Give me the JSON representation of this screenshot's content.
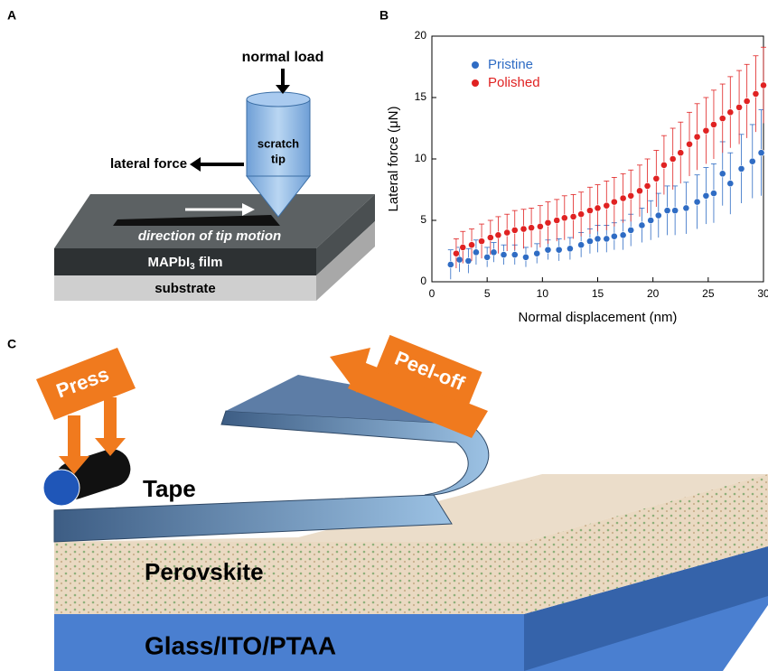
{
  "panel_labels": [
    "A",
    "B",
    "C"
  ],
  "panel_a": {
    "normal_load": "normal load",
    "tip_lines": [
      "scratch",
      "tip"
    ],
    "lateral_force": "lateral force",
    "direction": "direction of tip motion",
    "film": {
      "text": "MAPbI",
      "subscript": "3",
      "suffix": " film"
    },
    "substrate": "substrate"
  },
  "chart_data": {
    "type": "scatter",
    "xlabel": "Normal displacement (nm)",
    "ylabel": "Lateral force (μN)",
    "xlim": [
      0,
      30
    ],
    "xticks": [
      0,
      5,
      10,
      15,
      20,
      25,
      30
    ],
    "ylim": [
      0,
      20
    ],
    "yticks": [
      0,
      5,
      10,
      15,
      20
    ],
    "legend": "upper left",
    "series": [
      {
        "name": "Pristine",
        "color": "#2f6cc4",
        "x": [
          1.7,
          2.5,
          3.3,
          4.0,
          5.0,
          5.6,
          6.5,
          7.5,
          8.5,
          9.5,
          10.5,
          11.5,
          12.5,
          13.5,
          14.3,
          15.0,
          15.8,
          16.5,
          17.3,
          18.0,
          19.0,
          19.8,
          20.5,
          21.3,
          22.0,
          23.0,
          24.0,
          24.8,
          25.5,
          26.3,
          27.0,
          28.0,
          29.0,
          29.8
        ],
        "values": [
          1.4,
          1.8,
          1.7,
          2.4,
          2.0,
          2.4,
          2.2,
          2.2,
          2.0,
          2.3,
          2.6,
          2.6,
          2.7,
          3.0,
          3.3,
          3.5,
          3.5,
          3.7,
          3.8,
          4.2,
          4.6,
          5.0,
          5.4,
          5.8,
          5.8,
          6.0,
          6.5,
          7.0,
          7.2,
          8.8,
          8.0,
          9.2,
          9.8,
          10.5
        ],
        "errors": [
          1.2,
          1.0,
          1.0,
          1.0,
          0.8,
          0.8,
          0.8,
          0.8,
          0.8,
          0.8,
          0.8,
          0.9,
          0.9,
          1.0,
          1.0,
          1.1,
          1.1,
          1.1,
          1.2,
          1.3,
          1.4,
          1.6,
          1.8,
          2.0,
          2.0,
          2.1,
          2.2,
          2.3,
          2.4,
          2.6,
          2.5,
          2.8,
          3.0,
          3.5
        ]
      },
      {
        "name": "Polished",
        "color": "#e02222",
        "x": [
          2.2,
          2.8,
          3.6,
          4.5,
          5.3,
          6.0,
          6.8,
          7.5,
          8.3,
          9.0,
          9.8,
          10.5,
          11.3,
          12.0,
          12.8,
          13.5,
          14.3,
          15.0,
          15.8,
          16.5,
          17.3,
          18.0,
          18.8,
          19.5,
          20.3,
          21.0,
          21.8,
          22.5,
          23.3,
          24.0,
          24.8,
          25.5,
          26.3,
          27.0,
          27.8,
          28.5,
          29.3,
          30.0
        ],
        "values": [
          2.3,
          2.8,
          3.0,
          3.3,
          3.6,
          3.8,
          4.0,
          4.2,
          4.3,
          4.4,
          4.5,
          4.8,
          5.0,
          5.2,
          5.3,
          5.5,
          5.8,
          6.0,
          6.2,
          6.5,
          6.8,
          7.0,
          7.4,
          7.8,
          8.4,
          9.5,
          10.0,
          10.5,
          11.2,
          11.8,
          12.3,
          12.8,
          13.3,
          13.8,
          14.2,
          14.7,
          15.3,
          16.0
        ],
        "errors": [
          1.2,
          1.3,
          1.3,
          1.4,
          1.4,
          1.5,
          1.5,
          1.6,
          1.6,
          1.6,
          1.7,
          1.7,
          1.7,
          1.8,
          1.8,
          1.8,
          1.9,
          1.9,
          2.0,
          2.0,
          2.0,
          2.1,
          2.1,
          2.2,
          2.3,
          2.4,
          2.5,
          2.5,
          2.6,
          2.7,
          2.7,
          2.8,
          2.8,
          2.9,
          3.0,
          3.0,
          3.1,
          3.1
        ]
      }
    ]
  },
  "panel_c": {
    "press": "Press",
    "peel_off": "Peel-off",
    "tape": "Tape",
    "perovskite": "Perovskite",
    "substrate": "Glass/ITO/PTAA"
  }
}
